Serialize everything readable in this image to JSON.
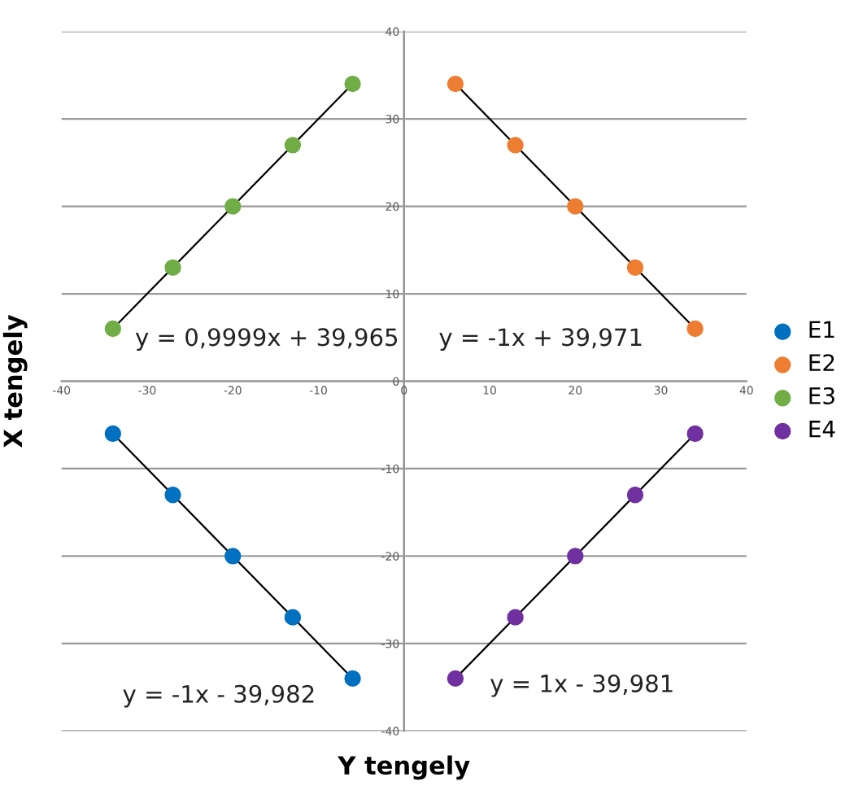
{
  "chart_data": {
    "type": "scatter",
    "xlabel": "Y tengely",
    "ylabel": "X tengely",
    "xlim": [
      -40,
      40
    ],
    "ylim": [
      -40,
      40
    ],
    "xticks": [
      -40,
      -30,
      -20,
      -10,
      0,
      10,
      20,
      30,
      40
    ],
    "yticks": [
      -40,
      -30,
      -20,
      -10,
      0,
      10,
      20,
      30,
      40
    ],
    "grid": "y",
    "legend": "right",
    "marker": "circle",
    "series": [
      {
        "name": "E1",
        "color": "#0070c0",
        "x": [
          -34,
          -27,
          -20,
          -13,
          -6
        ],
        "values": [
          -6,
          -13,
          -20,
          -27,
          -34
        ]
      },
      {
        "name": "E2",
        "color": "#ed7d31",
        "x": [
          6,
          13,
          20,
          27,
          34
        ],
        "values": [
          34,
          27,
          20,
          13,
          6
        ]
      },
      {
        "name": "E3",
        "color": "#70ad47",
        "x": [
          -34,
          -27,
          -20,
          -13,
          -6
        ],
        "values": [
          6,
          13,
          20,
          27,
          34
        ]
      },
      {
        "name": "E4",
        "color": "#7030a0",
        "x": [
          6,
          13,
          20,
          27,
          34
        ],
        "values": [
          -34,
          -27,
          -20,
          -13,
          -6
        ]
      },
      {
        "type": "line",
        "marker": "none",
        "color": "#000000",
        "x": [
          -34,
          -6
        ],
        "values": [
          -6,
          -34
        ]
      },
      {
        "type": "line",
        "marker": "none",
        "color": "#000000",
        "x": [
          6,
          34
        ],
        "values": [
          34,
          6
        ]
      },
      {
        "type": "line",
        "marker": "none",
        "color": "#000000",
        "x": [
          -34,
          -6
        ],
        "values": [
          6,
          34
        ]
      },
      {
        "type": "line",
        "marker": "none",
        "color": "#000000",
        "x": [
          6,
          34
        ],
        "values": [
          -34,
          -6
        ]
      }
    ],
    "annotations": [
      "y = 0,9999x + 39,965",
      "y = -1x + 39,971",
      "y = -1x - 39,982",
      "y = 1x - 39,981"
    ]
  }
}
